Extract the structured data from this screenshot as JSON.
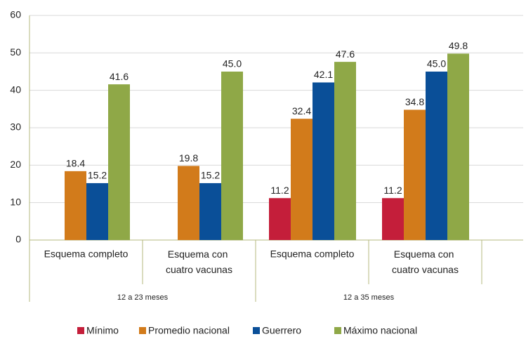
{
  "chart_data": {
    "type": "bar",
    "categories": [
      "Esquema completo",
      "Esquema con cuatro vacunas",
      "Esquema completo",
      "Esquema con cuatro vacunas"
    ],
    "group_labels": [
      "12 a 23 meses",
      "12 a 35 meses"
    ],
    "series": [
      {
        "name": "Mínimo",
        "color": "#c41e3a",
        "values": [
          null,
          null,
          11.2,
          11.2
        ],
        "value_labels": [
          null,
          null,
          "11.2",
          "11.2"
        ]
      },
      {
        "name": "Promedio nacional",
        "color": "#d27b1b",
        "values": [
          18.4,
          19.8,
          32.4,
          34.8
        ],
        "value_labels": [
          "18.4",
          "19.8",
          "32.4",
          "34.8"
        ]
      },
      {
        "name": "Guerrero",
        "color": "#0a4f98",
        "values": [
          15.2,
          15.2,
          42.1,
          45.0
        ],
        "value_labels": [
          "15.2",
          "15.2",
          "42.1",
          "45.0"
        ]
      },
      {
        "name": "Máximo nacional",
        "color": "#8fa847",
        "values": [
          41.6,
          45.0,
          47.6,
          49.8
        ],
        "value_labels": [
          "41.6",
          "45.0",
          "47.6",
          "49.8"
        ]
      }
    ],
    "ylim": [
      0,
      60
    ],
    "yticks": [
      0,
      10,
      20,
      30,
      40,
      50,
      60
    ],
    "grid": true,
    "legend": "bottom"
  }
}
